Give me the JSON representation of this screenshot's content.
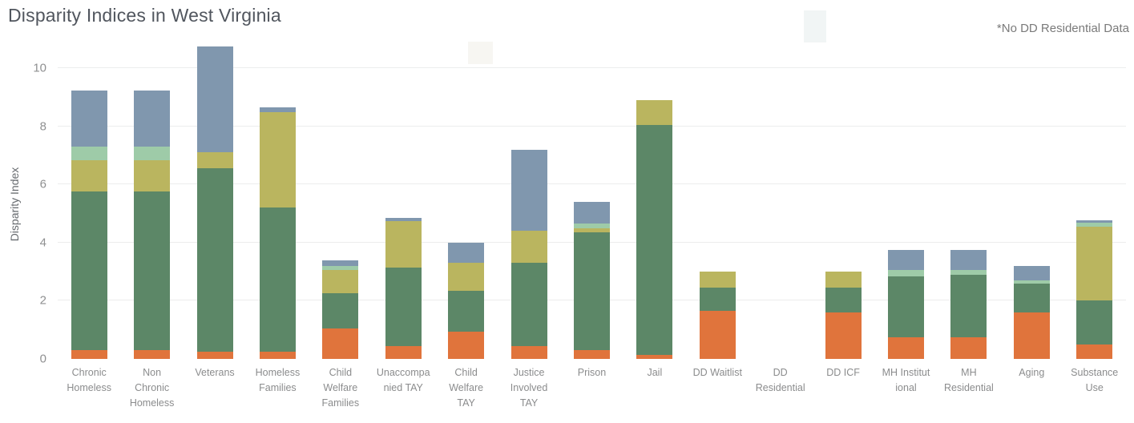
{
  "header": {
    "title": "Disparity Indices in West Virginia",
    "note": "*No DD Residential Data"
  },
  "chart_data": {
    "type": "bar",
    "stacked": true,
    "title": "Disparity Indices in West Virginia",
    "annotation": "*No DD Residential Data",
    "xlabel": "",
    "ylabel": "Disparity Index",
    "ymax": 11,
    "yticks": [
      0,
      2,
      4,
      6,
      8,
      10
    ],
    "grid": "horizontal",
    "legend": "none",
    "categories": [
      "Chronic Homeless",
      "Non Chronic Homeless",
      "Veterans",
      "Homeless Families",
      "Child Welfare Families",
      "Unaccompanied TAY",
      "Child Welfare TAY",
      "Justice Involved TAY",
      "Prison",
      "Jail",
      "DD Waitlist",
      "DD Residential",
      "DD ICF",
      "MH Institutional",
      "MH Residential",
      "Aging",
      "Substance Use"
    ],
    "category_label_lines": [
      [
        "Chronic",
        "Homeless"
      ],
      [
        "Non",
        "Chronic",
        "Homeless"
      ],
      [
        "Veterans"
      ],
      [
        "Homeless",
        "Families"
      ],
      [
        "Child",
        "Welfare",
        "Families"
      ],
      [
        "Unaccompa",
        "nied TAY"
      ],
      [
        "Child",
        "Welfare",
        "TAY"
      ],
      [
        "Justice",
        "Involved",
        "TAY"
      ],
      [
        "Prison"
      ],
      [
        "Jail"
      ],
      [
        "DD Waitlist"
      ],
      [
        "DD",
        "Residential"
      ],
      [
        "DD ICF"
      ],
      [
        "MH Institut",
        "ional"
      ],
      [
        "MH",
        "Residential"
      ],
      [
        "Aging"
      ],
      [
        "Substance",
        "Use"
      ]
    ],
    "series": [
      {
        "name": "orange",
        "color": "#E0743C",
        "values": [
          0.3,
          0.3,
          0.25,
          0.25,
          1.05,
          0.45,
          0.95,
          0.45,
          0.3,
          0.15,
          1.65,
          0,
          1.6,
          0.75,
          0.75,
          1.6,
          0.5
        ]
      },
      {
        "name": "green",
        "color": "#5C8767",
        "values": [
          5.45,
          5.45,
          6.3,
          4.95,
          1.2,
          2.7,
          1.4,
          2.85,
          4.05,
          7.9,
          0.8,
          0,
          0.85,
          2.1,
          2.15,
          1.0,
          1.5
        ]
      },
      {
        "name": "olive",
        "color": "#BAB55F",
        "values": [
          1.1,
          1.1,
          0.55,
          3.3,
          0.8,
          1.6,
          0.95,
          1.1,
          0.15,
          0.85,
          0.55,
          0,
          0.55,
          0,
          0,
          0,
          2.55
        ]
      },
      {
        "name": "mint",
        "color": "#9ECBA8",
        "values": [
          0.45,
          0.45,
          0,
          0,
          0.15,
          0,
          0,
          0,
          0.15,
          0,
          0,
          0,
          0,
          0.2,
          0.15,
          0.1,
          0.15
        ]
      },
      {
        "name": "blue-gray",
        "color": "#8097AE",
        "values": [
          1.95,
          1.95,
          3.65,
          0.15,
          0.2,
          0.1,
          0.7,
          2.8,
          0.75,
          0,
          0,
          0,
          0,
          0.7,
          0.7,
          0.5,
          0.08
        ]
      }
    ],
    "totals": [
      9.25,
      9.25,
      10.75,
      8.65,
      3.4,
      4.85,
      4.0,
      7.2,
      5.4,
      8.9,
      3.0,
      0,
      3.0,
      3.75,
      3.75,
      3.2,
      4.78
    ]
  }
}
